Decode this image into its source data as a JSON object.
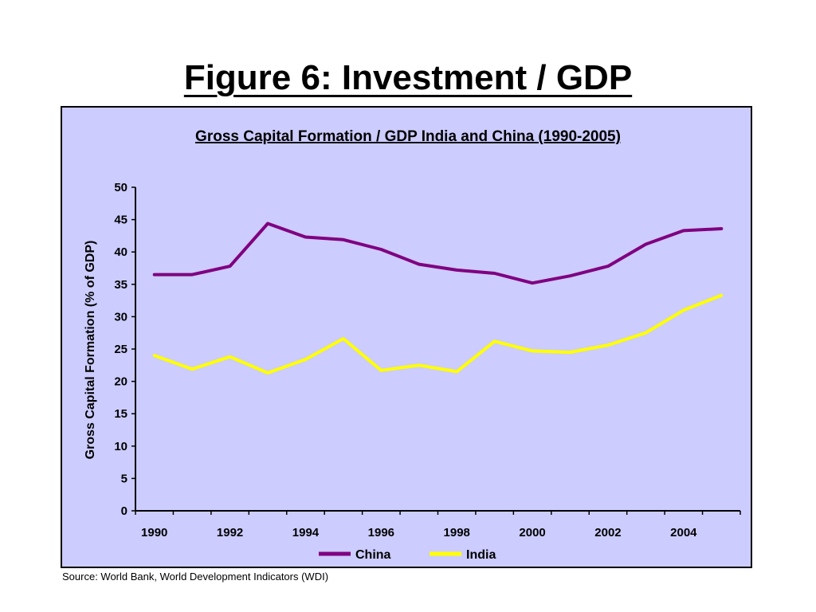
{
  "slide": {
    "title": "Figure 6: Investment / GDP",
    "source": "Source: World Bank, World Development Indicators (WDI)",
    "chart_background": "#ccccff"
  },
  "chart_data": {
    "type": "line",
    "title": "Gross Capital Formation / GDP India and China (1990-2005)",
    "xlabel": "",
    "ylabel": "Gross Capital Formation (% of GDP)",
    "ylim": [
      0,
      50
    ],
    "y_ticks": [
      0,
      5,
      10,
      15,
      20,
      25,
      30,
      35,
      40,
      45,
      50
    ],
    "x": [
      1990,
      1991,
      1992,
      1993,
      1994,
      1995,
      1996,
      1997,
      1998,
      1999,
      2000,
      2001,
      2002,
      2003,
      2004,
      2005
    ],
    "x_tick_labels": [
      "1990",
      "1992",
      "1994",
      "1996",
      "1998",
      "2000",
      "2002",
      "2004"
    ],
    "grid": false,
    "legend_position": "bottom",
    "series": [
      {
        "name": "China",
        "color": "#800080",
        "values": [
          36.5,
          36.5,
          37.8,
          44.4,
          42.3,
          41.9,
          40.4,
          38.1,
          37.2,
          36.7,
          35.2,
          36.3,
          37.8,
          41.2,
          43.3,
          43.6
        ]
      },
      {
        "name": "India",
        "color": "#ffff00",
        "values": [
          24.0,
          21.9,
          23.8,
          21.3,
          23.4,
          26.6,
          21.7,
          22.5,
          21.5,
          26.2,
          24.7,
          24.5,
          25.6,
          27.5,
          31.0,
          33.3
        ]
      }
    ]
  }
}
